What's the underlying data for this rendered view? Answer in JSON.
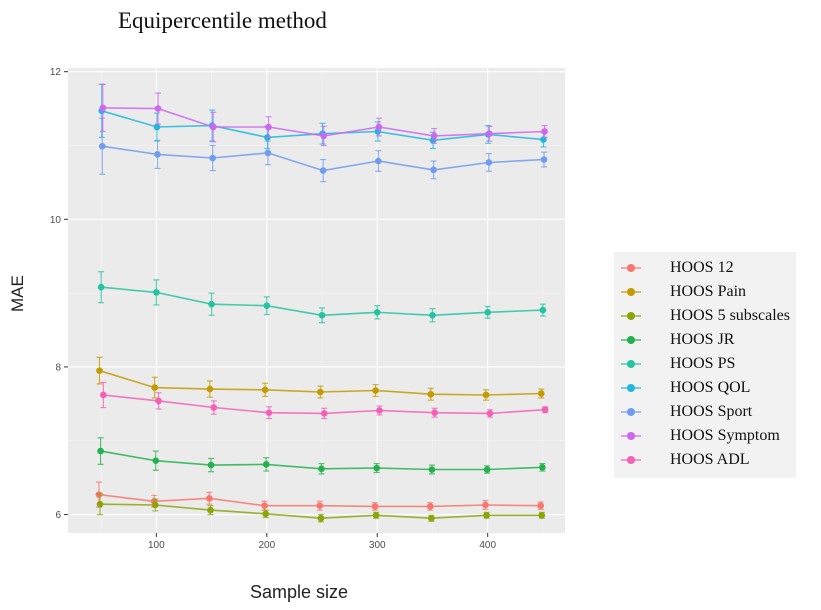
{
  "chart_data": {
    "type": "line",
    "title": "Equipercentile method",
    "xlabel": "Sample size",
    "ylabel": "MAE",
    "xlim": [
      20,
      470
    ],
    "ylim": [
      5.75,
      12.05
    ],
    "xticks": [
      100,
      200,
      300,
      400
    ],
    "yticks": [
      6,
      8,
      10,
      12
    ],
    "grid": true,
    "legend_position": "right",
    "x": [
      50,
      100,
      150,
      200,
      250,
      300,
      350,
      400,
      450
    ],
    "series": [
      {
        "name": "HOOS 12",
        "color": "#F8766D",
        "x_offset": -2,
        "values": [
          6.27,
          6.18,
          6.22,
          6.12,
          6.12,
          6.11,
          6.11,
          6.13,
          6.12
        ],
        "err": [
          0.17,
          0.08,
          0.08,
          0.06,
          0.06,
          0.05,
          0.05,
          0.06,
          0.05
        ]
      },
      {
        "name": "HOOS Pain",
        "color": "#C49A00",
        "x_offset": -1.5,
        "values": [
          7.95,
          7.72,
          7.7,
          7.69,
          7.66,
          7.68,
          7.63,
          7.62,
          7.64
        ],
        "err": [
          0.18,
          0.14,
          0.11,
          0.09,
          0.08,
          0.08,
          0.08,
          0.07,
          0.06
        ]
      },
      {
        "name": "HOOS 5 subscales",
        "color": "#8CA40A",
        "x_offset": -1,
        "values": [
          6.14,
          6.13,
          6.06,
          6.01,
          5.95,
          5.99,
          5.95,
          5.99,
          5.99
        ],
        "err": [
          0.14,
          0.08,
          0.06,
          0.05,
          0.05,
          0.04,
          0.04,
          0.04,
          0.04
        ]
      },
      {
        "name": "HOOS JR",
        "color": "#22B14C",
        "x_offset": -0.5,
        "values": [
          6.86,
          6.73,
          6.67,
          6.68,
          6.62,
          6.63,
          6.61,
          6.61,
          6.64
        ],
        "err": [
          0.18,
          0.13,
          0.09,
          0.09,
          0.07,
          0.06,
          0.06,
          0.05,
          0.05
        ]
      },
      {
        "name": "HOOS PS",
        "color": "#25C4A0",
        "x_offset": 0,
        "values": [
          9.08,
          9.01,
          8.85,
          8.83,
          8.7,
          8.74,
          8.7,
          8.74,
          8.77
        ],
        "err": [
          0.21,
          0.17,
          0.15,
          0.12,
          0.1,
          0.09,
          0.09,
          0.08,
          0.08
        ]
      },
      {
        "name": "HOOS QOL",
        "color": "#1FB8DC",
        "x_offset": 0.5,
        "values": [
          11.47,
          11.25,
          11.27,
          11.11,
          11.16,
          11.19,
          11.07,
          11.15,
          11.08
        ],
        "err": [
          0.36,
          0.19,
          0.21,
          0.15,
          0.14,
          0.13,
          0.11,
          0.12,
          0.1
        ]
      },
      {
        "name": "HOOS Sport",
        "color": "#6F9BF0",
        "x_offset": 1,
        "values": [
          10.99,
          10.88,
          10.83,
          10.9,
          10.66,
          10.79,
          10.67,
          10.77,
          10.81
        ],
        "err": [
          0.38,
          0.19,
          0.17,
          0.16,
          0.15,
          0.14,
          0.12,
          0.12,
          0.1
        ]
      },
      {
        "name": "HOOS Symptom",
        "color": "#CF66F0",
        "x_offset": 1.5,
        "values": [
          11.51,
          11.5,
          11.25,
          11.25,
          11.13,
          11.25,
          11.13,
          11.16,
          11.19
        ],
        "err": [
          0.32,
          0.21,
          0.2,
          0.14,
          0.13,
          0.12,
          0.1,
          0.1,
          0.08
        ]
      },
      {
        "name": "HOOS ADL",
        "color": "#F45FB8",
        "x_offset": 2,
        "values": [
          7.62,
          7.54,
          7.45,
          7.38,
          7.37,
          7.41,
          7.38,
          7.37,
          7.42
        ],
        "err": [
          0.17,
          0.11,
          0.09,
          0.08,
          0.07,
          0.06,
          0.06,
          0.05,
          0.04
        ]
      }
    ]
  }
}
